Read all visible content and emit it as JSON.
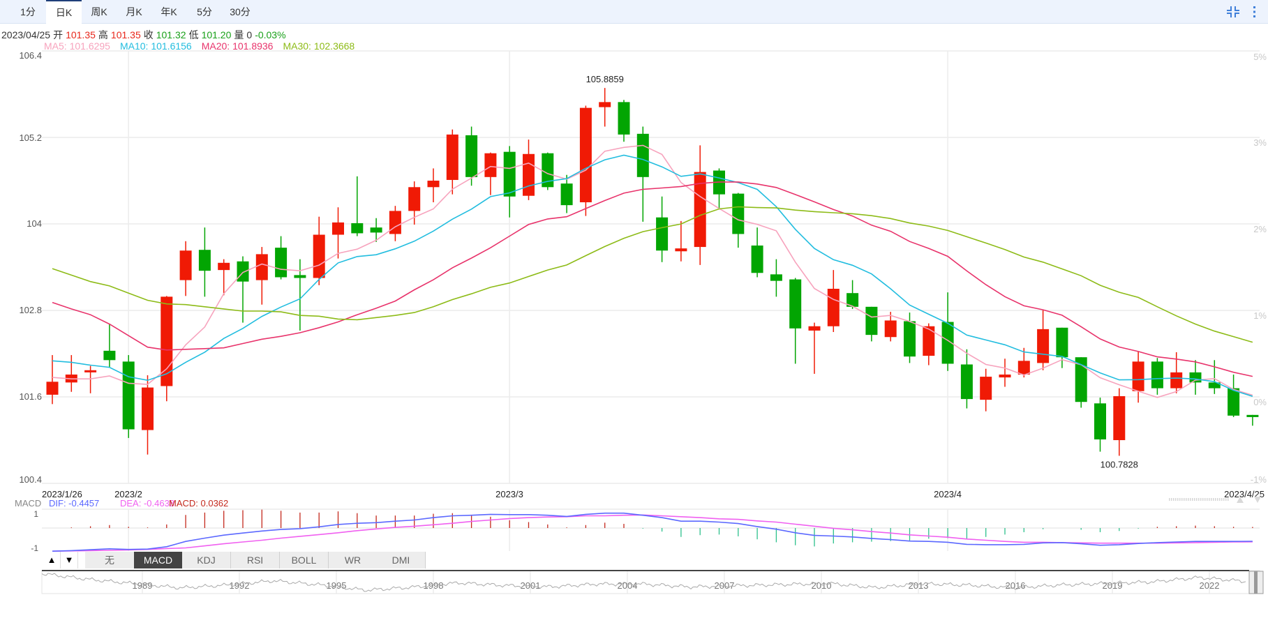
{
  "toolbar": {
    "tabs": [
      "1分",
      "日K",
      "周K",
      "月K",
      "年K",
      "5分",
      "30分"
    ],
    "active_tab": "日K",
    "icons": [
      "compress-icon",
      "more-vertical-icon"
    ]
  },
  "info": {
    "date": "2023/04/25",
    "open_label": "开",
    "open": "101.35",
    "high_label": "高",
    "high": "101.35",
    "close_label": "收",
    "close": "101.32",
    "low_label": "低",
    "low": "101.20",
    "volume_label": "量",
    "volume": "0",
    "change": "-0.03%"
  },
  "ma_legend": {
    "ma5": "MA5: 101.6295",
    "ma10": "MA10: 101.6156",
    "ma20": "MA20: 101.8936",
    "ma30": "MA30: 102.3668"
  },
  "colors": {
    "up": "#f01a05",
    "down": "#02a502",
    "ma5": "#f7a3bd",
    "ma10": "#22bddf",
    "ma20": "#e8336b",
    "ma30": "#8dbb17",
    "dif": "#5b68ff",
    "dea": "#f060f0",
    "macd_up": "#c4281c",
    "macd_down": "#2cc08c",
    "toolbar_bg": "#edf3fd",
    "accent": "#3f7fd9"
  },
  "chart_data": [
    {
      "type": "candlestick",
      "ylim": [
        100.4,
        106.4
      ],
      "y_ticks": [
        "106.4",
        "105.2",
        "104",
        "102.8",
        "101.6",
        "100.4"
      ],
      "y_ticks_right": [
        "5%",
        "3%",
        "2%",
        "1%",
        "0%",
        "-1%"
      ],
      "x_labels": {
        "first": "2023/1/26",
        "feb": "2023/2",
        "mar": "2023/3",
        "apr": "2023/4",
        "last": "2023/4/25"
      },
      "max_label": "105.8859",
      "min_label": "100.7828",
      "grid": true,
      "ohlc": [
        [
          101.63,
          102.18,
          101.5,
          101.81
        ],
        [
          101.8,
          102.18,
          101.67,
          101.91
        ],
        [
          101.94,
          102.03,
          101.65,
          101.97
        ],
        [
          102.24,
          102.61,
          102.01,
          102.11
        ],
        [
          102.09,
          102.18,
          101.03,
          101.15
        ],
        [
          101.14,
          101.9,
          100.8,
          101.73
        ],
        [
          101.75,
          103.0,
          101.54,
          102.99
        ],
        [
          103.22,
          103.76,
          103.0,
          103.63
        ],
        [
          103.64,
          103.95,
          102.99,
          103.35
        ],
        [
          103.36,
          103.51,
          103.01,
          103.46
        ],
        [
          103.48,
          103.55,
          102.63,
          103.2
        ],
        [
          103.22,
          103.68,
          102.88,
          103.58
        ],
        [
          103.67,
          103.83,
          103.23,
          103.26
        ],
        [
          103.29,
          103.51,
          102.52,
          103.25
        ],
        [
          103.25,
          104.1,
          103.15,
          103.85
        ],
        [
          103.85,
          104.23,
          103.52,
          104.02
        ],
        [
          104.01,
          104.66,
          103.83,
          103.87
        ],
        [
          103.95,
          104.08,
          103.75,
          103.88
        ],
        [
          103.86,
          104.25,
          103.76,
          104.18
        ],
        [
          104.18,
          104.59,
          103.99,
          104.51
        ],
        [
          104.51,
          104.77,
          104.3,
          104.6
        ],
        [
          104.61,
          105.31,
          104.41,
          105.24
        ],
        [
          105.23,
          105.35,
          104.53,
          104.65
        ],
        [
          104.65,
          104.99,
          104.4,
          104.98
        ],
        [
          105.0,
          105.08,
          104.09,
          104.38
        ],
        [
          104.39,
          105.17,
          104.33,
          104.97
        ],
        [
          104.98,
          104.99,
          104.47,
          104.51
        ],
        [
          104.56,
          104.68,
          104.15,
          104.26
        ],
        [
          104.3,
          105.64,
          104.11,
          105.61
        ],
        [
          105.62,
          105.8859,
          105.35,
          105.69
        ],
        [
          105.69,
          105.72,
          105.14,
          105.24
        ],
        [
          105.25,
          105.35,
          104.03,
          104.65
        ],
        [
          104.09,
          104.38,
          103.47,
          103.63
        ],
        [
          103.62,
          104.04,
          103.48,
          103.66
        ],
        [
          103.68,
          105.09,
          103.43,
          104.72
        ],
        [
          104.74,
          104.77,
          104.22,
          104.41
        ],
        [
          104.42,
          104.43,
          103.67,
          103.86
        ],
        [
          103.7,
          103.95,
          103.26,
          103.32
        ],
        [
          103.3,
          103.51,
          102.99,
          103.21
        ],
        [
          103.23,
          103.25,
          102.06,
          102.55
        ],
        [
          102.52,
          102.63,
          101.92,
          102.58
        ],
        [
          102.58,
          103.36,
          102.5,
          103.1
        ],
        [
          103.04,
          103.22,
          102.82,
          102.85
        ],
        [
          102.85,
          102.85,
          102.37,
          102.46
        ],
        [
          102.43,
          102.78,
          102.37,
          102.66
        ],
        [
          102.65,
          102.77,
          102.07,
          102.16
        ],
        [
          102.17,
          102.62,
          102.04,
          102.58
        ],
        [
          102.64,
          103.05,
          101.96,
          102.06
        ],
        [
          102.05,
          102.26,
          101.44,
          101.57
        ],
        [
          101.56,
          101.99,
          101.4,
          101.88
        ],
        [
          101.87,
          102.13,
          101.74,
          101.91
        ],
        [
          101.91,
          102.28,
          101.87,
          102.1
        ],
        [
          102.07,
          102.8,
          101.97,
          102.54
        ],
        [
          102.56,
          102.56,
          102.0,
          102.15
        ],
        [
          102.15,
          102.15,
          101.45,
          101.53
        ],
        [
          101.51,
          101.59,
          100.84,
          101.01
        ],
        [
          101.0,
          101.72,
          100.7828,
          101.61
        ],
        [
          101.68,
          102.23,
          101.52,
          102.09
        ],
        [
          102.09,
          102.14,
          101.63,
          101.72
        ],
        [
          101.72,
          102.22,
          101.65,
          101.94
        ],
        [
          101.94,
          102.11,
          101.63,
          101.8
        ],
        [
          101.8,
          102.11,
          101.64,
          101.72
        ],
        [
          101.72,
          101.91,
          101.32,
          101.34
        ],
        [
          101.35,
          101.35,
          101.2,
          101.32
        ]
      ],
      "ma": {
        "ma5": [
          101.87,
          101.85,
          101.85,
          101.89
        ],
        "ma10": [
          102.1,
          102.08,
          102.04,
          102.01,
          101.88,
          101.83,
          101.92,
          102.08,
          102.22
        ],
        "ma20": [
          102.91,
          102.82,
          102.74,
          102.61,
          102.45,
          102.29,
          102.25,
          102.26,
          102.27,
          102.28,
          102.34,
          102.4,
          102.44,
          102.49,
          102.56,
          102.64,
          102.74,
          102.83,
          102.93
        ],
        "ma30": [
          103.38,
          103.29,
          103.2,
          103.14,
          103.04,
          102.94,
          102.89,
          102.88,
          102.85,
          102.82,
          102.79,
          102.79,
          102.78,
          102.73,
          102.72,
          102.68,
          102.67,
          102.7,
          102.73,
          102.77,
          102.85,
          102.95,
          103.03,
          103.12,
          103.18,
          103.27,
          103.36,
          103.43,
          103.56
        ]
      }
    },
    {
      "type": "macd",
      "title": "MACD",
      "dif_label": "DIF: -0.4457",
      "dea_label": "DEA: -0.4638",
      "macd_label": "MACD: 0.0362",
      "y_ticks": [
        "1",
        "-1"
      ],
      "ylim": [
        -0.83,
        0.69
      ],
      "dif": [
        -0.78,
        -0.76,
        -0.73,
        -0.7,
        -0.72,
        -0.71,
        -0.63,
        -0.45,
        -0.34,
        -0.24,
        -0.17,
        -0.1,
        -0.05,
        -0.02,
        0.04,
        0.12,
        0.16,
        0.18,
        0.23,
        0.27,
        0.35,
        0.41,
        0.43,
        0.46,
        0.45,
        0.45,
        0.43,
        0.39,
        0.46,
        0.5,
        0.5,
        0.43,
        0.35,
        0.23,
        0.23,
        0.2,
        0.15,
        0.05,
        -0.04,
        -0.16,
        -0.25,
        -0.27,
        -0.3,
        -0.35,
        -0.39,
        -0.44,
        -0.45,
        -0.48,
        -0.55,
        -0.56,
        -0.56,
        -0.55,
        -0.5,
        -0.49,
        -0.53,
        -0.58,
        -0.56,
        -0.52,
        -0.49,
        -0.47,
        -0.45,
        -0.45,
        -0.45,
        -0.4457
      ],
      "dea": [
        -0.78,
        -0.77,
        -0.76,
        -0.75,
        -0.74,
        -0.72,
        -0.69,
        -0.67,
        -0.6,
        -0.53,
        -0.47,
        -0.41,
        -0.34,
        -0.28,
        -0.22,
        -0.16,
        -0.09,
        -0.03,
        0.02,
        0.06,
        0.11,
        0.16,
        0.22,
        0.27,
        0.32,
        0.35,
        0.37,
        0.38,
        0.41,
        0.41,
        0.43,
        0.44,
        0.41,
        0.38,
        0.35,
        0.31,
        0.29,
        0.24,
        0.2,
        0.13,
        0.06,
        -0.01,
        -0.06,
        -0.12,
        -0.17,
        -0.23,
        -0.27,
        -0.31,
        -0.37,
        -0.41,
        -0.45,
        -0.48,
        -0.48,
        -0.49,
        -0.5,
        -0.51,
        -0.51,
        -0.51,
        -0.51,
        -0.5,
        -0.49,
        -0.48,
        -0.47,
        -0.4638
      ]
    }
  ],
  "indicator_tabs": {
    "up_arrow": "▲",
    "down_arrow": "▼",
    "tabs": [
      "无",
      "MACD",
      "KDJ",
      "RSI",
      "BOLL",
      "WR",
      "DMI"
    ],
    "active": "MACD"
  },
  "navigator": {
    "years": [
      "1989",
      "1992",
      "1995",
      "1998",
      "2001",
      "2004",
      "2007",
      "2010",
      "2013",
      "2016",
      "2019",
      "2022"
    ]
  }
}
